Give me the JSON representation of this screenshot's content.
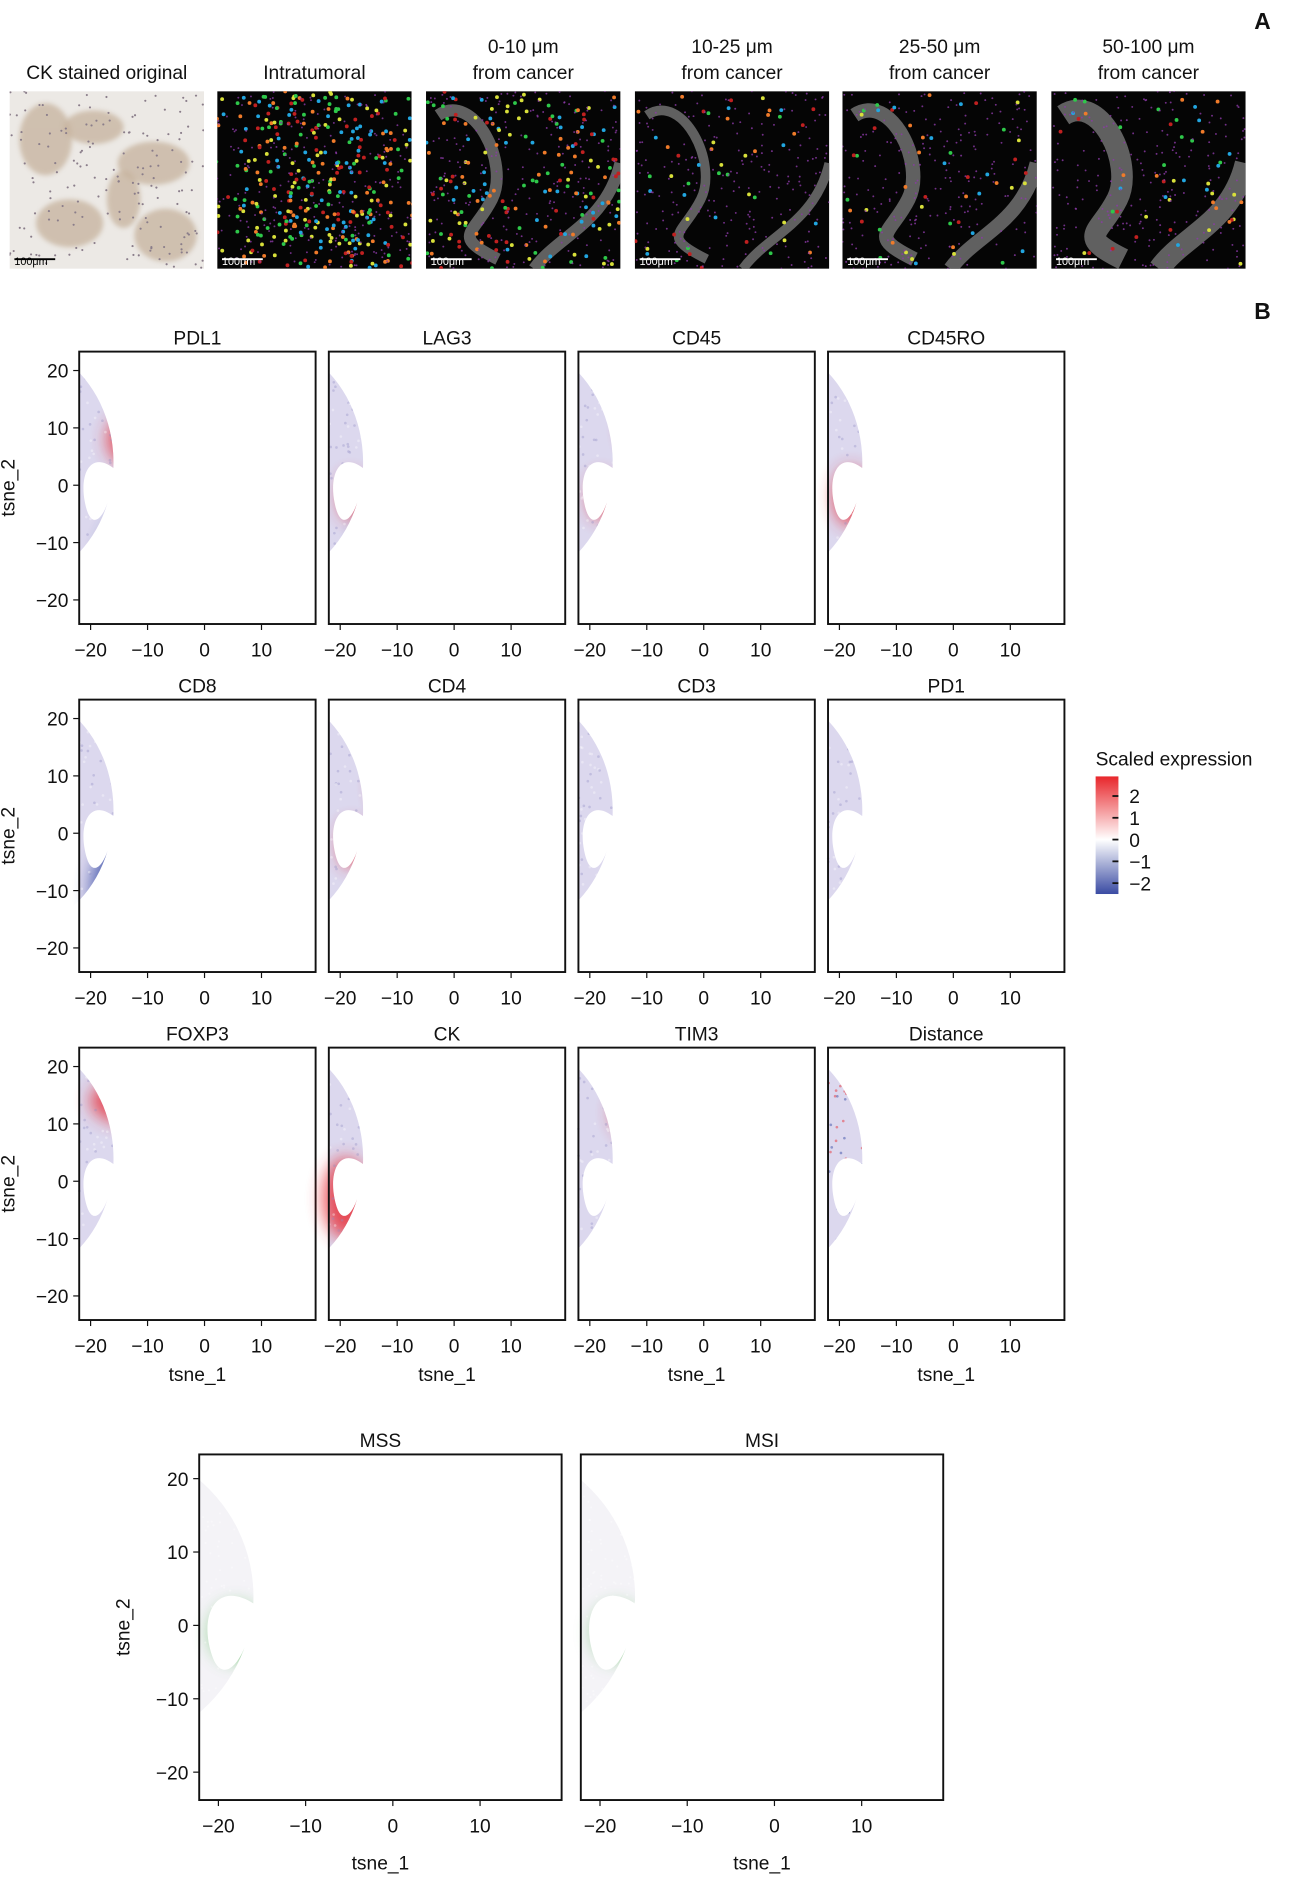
{
  "panel_labels": [
    "A",
    "B"
  ],
  "images": [
    {
      "caption": [
        "CK stained original"
      ],
      "scale_bar": "100μm"
    },
    {
      "caption": [
        "Intratumoral"
      ],
      "scale_bar": "100μm"
    },
    {
      "caption": [
        "0-10 μm",
        "from cancer"
      ],
      "scale_bar": "100μm"
    },
    {
      "caption": [
        "10-25 μm",
        "from cancer"
      ],
      "scale_bar": "100μm"
    },
    {
      "caption": [
        "25-50 μm",
        "from cancer"
      ],
      "scale_bar": "100μm"
    },
    {
      "caption": [
        "50-100 μm",
        "from cancer"
      ],
      "scale_bar": "100μm"
    }
  ],
  "colorbar": {
    "title": "Scaled expression",
    "lim": [
      -2.5,
      2.9
    ],
    "colors": [
      "#3a4ba3",
      "#ffffff",
      "#e8262b"
    ],
    "ticks": [
      {
        "value": 2,
        "label": "2"
      },
      {
        "value": 1,
        "label": "1"
      },
      {
        "value": 0,
        "label": "0"
      },
      {
        "value": -1,
        "label": "−1"
      },
      {
        "value": -2,
        "label": "−2"
      }
    ]
  },
  "chart_data": [
    {
      "type": "scatter",
      "title": "PDL1",
      "ylabel": "tsne_2",
      "xlim": [
        -22,
        19.5
      ],
      "ylim": [
        -24.2,
        23.3
      ],
      "xticks": [
        {
          "value": -20,
          "label": "−20"
        },
        {
          "value": -10,
          "label": "−10"
        },
        0,
        10
      ],
      "yticks": [
        20,
        10,
        0,
        {
          "value": -10,
          "label": "−10"
        },
        {
          "value": -20,
          "label": "−20"
        }
      ]
    },
    {
      "type": "scatter",
      "title": "LAG3",
      "xlim": [
        -22,
        19.5
      ],
      "ylim": [
        -24.2,
        23.3
      ],
      "xticks": [
        {
          "value": -20,
          "label": "−20"
        },
        {
          "value": -10,
          "label": "−10"
        },
        0,
        10
      ]
    },
    {
      "type": "scatter",
      "title": "CD45",
      "xlim": [
        -22,
        19.5
      ],
      "ylim": [
        -24.2,
        23.3
      ],
      "xticks": [
        {
          "value": -20,
          "label": "−20"
        },
        {
          "value": -10,
          "label": "−10"
        },
        0,
        10
      ]
    },
    {
      "type": "scatter",
      "title": "CD45RO",
      "xlim": [
        -22,
        19.5
      ],
      "ylim": [
        -24.2,
        23.3
      ],
      "xticks": [
        {
          "value": -20,
          "label": "−20"
        },
        {
          "value": -10,
          "label": "−10"
        },
        0,
        10
      ]
    },
    {
      "type": "scatter",
      "title": "CD8",
      "ylabel": "tsne_2",
      "xlim": [
        -22,
        19.5
      ],
      "ylim": [
        -24.2,
        23.3
      ],
      "xticks": [
        {
          "value": -20,
          "label": "−20"
        },
        {
          "value": -10,
          "label": "−10"
        },
        0,
        10
      ],
      "yticks": [
        20,
        10,
        0,
        {
          "value": -10,
          "label": "−10"
        },
        {
          "value": -20,
          "label": "−20"
        }
      ]
    },
    {
      "type": "scatter",
      "title": "CD4",
      "xlim": [
        -22,
        19.5
      ],
      "ylim": [
        -24.2,
        23.3
      ],
      "xticks": [
        {
          "value": -20,
          "label": "−20"
        },
        {
          "value": -10,
          "label": "−10"
        },
        0,
        10
      ]
    },
    {
      "type": "scatter",
      "title": "CD3",
      "xlim": [
        -22,
        19.5
      ],
      "ylim": [
        -24.2,
        23.3
      ],
      "xticks": [
        {
          "value": -20,
          "label": "−20"
        },
        {
          "value": -10,
          "label": "−10"
        },
        0,
        10
      ]
    },
    {
      "type": "scatter",
      "title": "PD1",
      "xlim": [
        -22,
        19.5
      ],
      "ylim": [
        -24.2,
        23.3
      ],
      "xticks": [
        {
          "value": -20,
          "label": "−20"
        },
        {
          "value": -10,
          "label": "−10"
        },
        0,
        10
      ]
    },
    {
      "type": "scatter",
      "title": "FOXP3",
      "ylabel": "tsne_2",
      "xlabel": "tsne_1",
      "xlim": [
        -22,
        19.5
      ],
      "ylim": [
        -24.2,
        23.3
      ],
      "xticks": [
        {
          "value": -20,
          "label": "−20"
        },
        {
          "value": -10,
          "label": "−10"
        },
        0,
        10
      ],
      "yticks": [
        20,
        10,
        0,
        {
          "value": -10,
          "label": "−10"
        },
        {
          "value": -20,
          "label": "−20"
        }
      ]
    },
    {
      "type": "scatter",
      "title": "CK",
      "xlabel": "tsne_1",
      "xlim": [
        -22,
        19.5
      ],
      "ylim": [
        -24.2,
        23.3
      ],
      "xticks": [
        {
          "value": -20,
          "label": "−20"
        },
        {
          "value": -10,
          "label": "−10"
        },
        0,
        10
      ]
    },
    {
      "type": "scatter",
      "title": "TIM3",
      "xlabel": "tsne_1",
      "xlim": [
        -22,
        19.5
      ],
      "ylim": [
        -24.2,
        23.3
      ],
      "xticks": [
        {
          "value": -20,
          "label": "−20"
        },
        {
          "value": -10,
          "label": "−10"
        },
        0,
        10
      ]
    },
    {
      "type": "scatter",
      "title": "Distance",
      "xlabel": "tsne_1",
      "xlim": [
        -22,
        19.5
      ],
      "ylim": [
        -24.2,
        23.3
      ],
      "xticks": [
        {
          "value": -20,
          "label": "−20"
        },
        {
          "value": -10,
          "label": "−10"
        },
        0,
        10
      ]
    },
    {
      "type": "scatter",
      "title": "MSS",
      "ylabel": "tsne_2",
      "xlabel": "tsne_1",
      "xlim": [
        -22.2,
        19.35
      ],
      "ylim": [
        -23.8,
        23.3
      ],
      "xticks": [
        {
          "value": -20,
          "label": "−20"
        },
        {
          "value": -10,
          "label": "−10"
        },
        0,
        10
      ],
      "yticks": [
        20,
        10,
        0,
        {
          "value": -10,
          "label": "−10"
        },
        {
          "value": -20,
          "label": "−20"
        }
      ]
    },
    {
      "type": "scatter",
      "title": "MSI",
      "xlabel": "tsne_1",
      "xlim": [
        -22.2,
        19.35
      ],
      "ylim": [
        -23.8,
        23.3
      ],
      "xticks": [
        {
          "value": -20,
          "label": "−20"
        },
        {
          "value": -10,
          "label": "−10"
        },
        0,
        10
      ]
    }
  ]
}
